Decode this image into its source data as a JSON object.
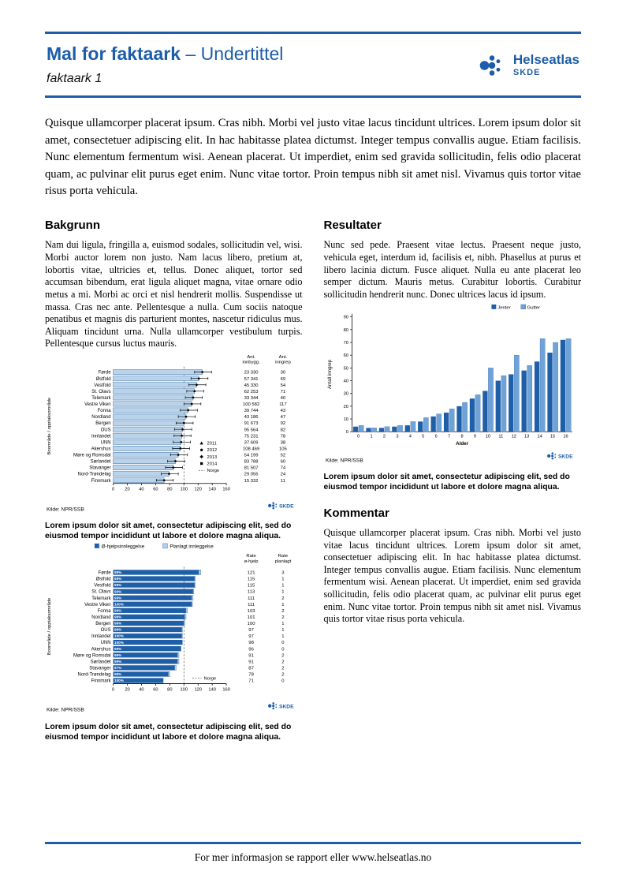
{
  "header": {
    "title": "Mal for faktaark",
    "subtitle": "– Undertittel",
    "doc_label": "faktaark 1",
    "logo_name": "Helseatlas",
    "logo_sub": "SKDE"
  },
  "intro": "Quisque ullamcorper placerat ipsum. Cras nibh. Morbi vel justo vitae lacus tincidunt ultrices. Lorem ipsum dolor sit amet, consectetuer adipiscing elit. In hac habitasse platea dictumst. Integer tempus convallis augue. Etiam facilisis. Nunc elementum fermentum wisi. Aenean placerat. Ut imperdiet, enim sed gravida sollicitudin, felis odio placerat quam, ac pulvinar elit purus eget enim. Nunc vitae tortor. Proin tempus nibh sit amet nisl. Vivamus quis tortor vitae risus porta vehicula.",
  "sections": {
    "bakgrunn": {
      "heading": "Bakgrunn",
      "body": "Nam dui ligula, fringilla a, euismod sodales, sollicitudin vel, wisi. Morbi auctor lorem non justo. Nam lacus libero, pretium at, lobortis vitae, ultricies et, tellus. Donec aliquet, tortor sed accumsan bibendum, erat ligula aliquet magna, vitae ornare odio metus a mi. Morbi ac orci et nisl hendrerit mollis. Suspendisse ut massa. Cras nec ante. Pellentesque a nulla. Cum sociis natoque penatibus et magnis dis parturient montes, nascetur ridiculus mus. Aliquam tincidunt urna. Nulla ullamcorper vestibulum turpis. Pellentesque cursus luctus mauris."
    },
    "resultater": {
      "heading": "Resultater",
      "body": "Nunc sed pede. Praesent vitae lectus. Praesent neque justo, vehicula eget, interdum id, facilisis et, nibh. Phasellus at purus et libero lacinia dictum. Fusce aliquet. Nulla eu ante placerat leo semper dictum. Mauris metus. Curabitur lobortis. Curabitur sollicitudin hendrerit nunc. Donec ultrices lacus id ipsum."
    },
    "kommentar": {
      "heading": "Kommentar",
      "body": "Quisque ullamcorper placerat ipsum. Cras nibh. Morbi vel justo vitae lacus tincidunt ultrices. Lorem ipsum dolor sit amet, consectetuer adipiscing elit. In hac habitasse platea dictumst. Integer tempus convallis augue. Etiam facilisis. Nunc elementum fermentum wisi. Aenean placerat. Ut imperdiet, enim sed gravida sollicitudin, felis odio placerat quam, ac pulvinar elit purus eget enim. Nunc vitae tortor. Proin tempus nibh sit amet nisl. Vivamus quis tortor vitae risus porta vehicula."
    }
  },
  "captions": {
    "chart1": "Lorem ipsum dolor sit amet, consectetur adipiscing elit, sed do eiusmod tempor incididunt ut labore et dolore magna aliqua.",
    "chart2": "Lorem ipsum dolor sit amet, consectetur adipiscing elit, sed do eiusmod tempor incididunt ut labore et dolore magna aliqua.",
    "chart3": "Lorem ipsum dolor sit amet, consectetur adipiscing elit, sed do eiusmod tempor incididunt ut labore et dolore magna aliqua."
  },
  "footer": {
    "text": "For mer informasjon se rapport eller www.helseatlas.no"
  },
  "colors": {
    "brand": "#1d5da9",
    "bar_dark": "#1e5fa8",
    "bar_mid": "#3d6fa8",
    "bar_light": "#b9d3ea",
    "bar_gutter": "#6fa3d8"
  },
  "chart_data": [
    {
      "id": "chart1",
      "type": "bar",
      "orientation": "horizontal",
      "ylabel": "Boområde / opptaksområde",
      "xlim": [
        0,
        160
      ],
      "xticks": [
        0,
        20,
        40,
        60,
        80,
        100,
        120,
        140,
        160
      ],
      "col_headers": [
        "Ant. innbygg.",
        "Ant. inngrep"
      ],
      "legend": [
        "2011",
        "2012",
        "2013",
        "2014",
        "Norge"
      ],
      "norge_line": 100,
      "source": "Kilde: NPR/SSB",
      "rows": [
        {
          "label": "Førde",
          "rate": 126,
          "innbygg": "23 330",
          "inngrep": "30"
        },
        {
          "label": "Østfold",
          "rate": 121,
          "innbygg": "57 341",
          "inngrep": "69"
        },
        {
          "label": "Vestfold",
          "rate": 118,
          "innbygg": "45 330",
          "inngrep": "54"
        },
        {
          "label": "St. Olavs",
          "rate": 115,
          "innbygg": "62 253",
          "inngrep": "71"
        },
        {
          "label": "Telemark",
          "rate": 113,
          "innbygg": "33 344",
          "inngrep": "40"
        },
        {
          "label": "Vestre Viken",
          "rate": 111,
          "innbygg": "100 582",
          "inngrep": "117"
        },
        {
          "label": "Fonna",
          "rate": 106,
          "innbygg": "39 744",
          "inngrep": "43"
        },
        {
          "label": "Nordland",
          "rate": 103,
          "innbygg": "43 186",
          "inngrep": "47"
        },
        {
          "label": "Bergen",
          "rate": 100,
          "innbygg": "91 673",
          "inngrep": "92"
        },
        {
          "label": "OUS",
          "rate": 98,
          "innbygg": "95 564",
          "inngrep": "82"
        },
        {
          "label": "Innlandet",
          "rate": 97,
          "innbygg": "75 231",
          "inngrep": "78"
        },
        {
          "label": "UNN",
          "rate": 96,
          "innbygg": "37 609",
          "inngrep": "38"
        },
        {
          "label": "Akershus",
          "rate": 95,
          "innbygg": "108 469",
          "inngrep": "105"
        },
        {
          "label": "Møre og Romsdal",
          "rate": 92,
          "innbygg": "54 199",
          "inngrep": "52"
        },
        {
          "label": "Sørlandet",
          "rate": 88,
          "innbygg": "83 788",
          "inngrep": "60"
        },
        {
          "label": "Stavanger",
          "rate": 85,
          "innbygg": "81 507",
          "inngrep": "74"
        },
        {
          "label": "Nord-Trøndelag",
          "rate": 79,
          "innbygg": "29 056",
          "inngrep": "24"
        },
        {
          "label": "Finnmark",
          "rate": 72,
          "innbygg": "15 332",
          "inngrep": "11"
        }
      ]
    },
    {
      "id": "chart2",
      "type": "bar",
      "orientation": "horizontal",
      "stacked": true,
      "legend": [
        "Ø-hjelpsinnleggelse",
        "Planlagt innleggelse"
      ],
      "ylabel": "Boområde / opptaksområde",
      "xlim": [
        0,
        160
      ],
      "xticks": [
        0,
        20,
        40,
        60,
        80,
        100,
        120,
        140,
        160
      ],
      "col_headers": [
        "Rate ø-hjelp",
        "Rate planlagt"
      ],
      "norge_line": 100,
      "norge_label": "Norge",
      "source": "Kilde: NPR/SSB",
      "rows": [
        {
          "label": "Førde",
          "pct": "98%",
          "ohjelp": 121,
          "planlagt": 3
        },
        {
          "label": "Østfold",
          "pct": "99%",
          "ohjelp": 115,
          "planlagt": 1
        },
        {
          "label": "Vestfold",
          "pct": "99%",
          "ohjelp": 115,
          "planlagt": 1
        },
        {
          "label": "St. Olavs",
          "pct": "99%",
          "ohjelp": 113,
          "planlagt": 1
        },
        {
          "label": "Telemark",
          "pct": "99%",
          "ohjelp": 111,
          "planlagt": 2
        },
        {
          "label": "Vestre Viken",
          "pct": "100%",
          "ohjelp": 111,
          "planlagt": 1
        },
        {
          "label": "Fonna",
          "pct": "99%",
          "ohjelp": 103,
          "planlagt": 2
        },
        {
          "label": "Nordland",
          "pct": "99%",
          "ohjelp": 101,
          "planlagt": 2
        },
        {
          "label": "Bergen",
          "pct": "99%",
          "ohjelp": 100,
          "planlagt": 1
        },
        {
          "label": "OUS",
          "pct": "99%",
          "ohjelp": 97,
          "planlagt": 1
        },
        {
          "label": "Innlandet",
          "pct": "100%",
          "ohjelp": 97,
          "planlagt": 1
        },
        {
          "label": "UNN",
          "pct": "100%",
          "ohjelp": 98,
          "planlagt": 0
        },
        {
          "label": "Akershus",
          "pct": "99%",
          "ohjelp": 96,
          "planlagt": 0
        },
        {
          "label": "Møre og Romsdal",
          "pct": "99%",
          "ohjelp": 91,
          "planlagt": 2
        },
        {
          "label": "Sørlandet",
          "pct": "99%",
          "ohjelp": 91,
          "planlagt": 2
        },
        {
          "label": "Stavanger",
          "pct": "97%",
          "ohjelp": 87,
          "planlagt": 2
        },
        {
          "label": "Nord-Trøndelag",
          "pct": "98%",
          "ohjelp": 78,
          "planlagt": 2
        },
        {
          "label": "Finnmark",
          "pct": "100%",
          "ohjelp": 71,
          "planlagt": 0
        }
      ]
    },
    {
      "id": "chart3",
      "type": "bar",
      "orientation": "vertical",
      "legend": [
        "Jenter",
        "Gutter"
      ],
      "xlabel": "Alder",
      "ylabel": "Antall inngrep",
      "ylim": [
        0,
        90
      ],
      "yticks": [
        0,
        10,
        20,
        30,
        40,
        50,
        60,
        70,
        80,
        90
      ],
      "categories": [
        0,
        1,
        2,
        3,
        4,
        5,
        6,
        7,
        8,
        9,
        10,
        11,
        12,
        13,
        14,
        15,
        16
      ],
      "series": [
        {
          "name": "Jenter",
          "values": [
            4,
            3,
            3,
            4,
            5,
            8,
            12,
            15,
            20,
            26,
            32,
            40,
            45,
            48,
            55,
            62,
            72
          ]
        },
        {
          "name": "Gutter",
          "values": [
            5,
            3,
            4,
            5,
            8,
            11,
            14,
            18,
            23,
            29,
            50,
            44,
            60,
            52,
            73,
            70,
            73
          ]
        }
      ],
      "source": "Kilde: NPR/SSB"
    }
  ]
}
